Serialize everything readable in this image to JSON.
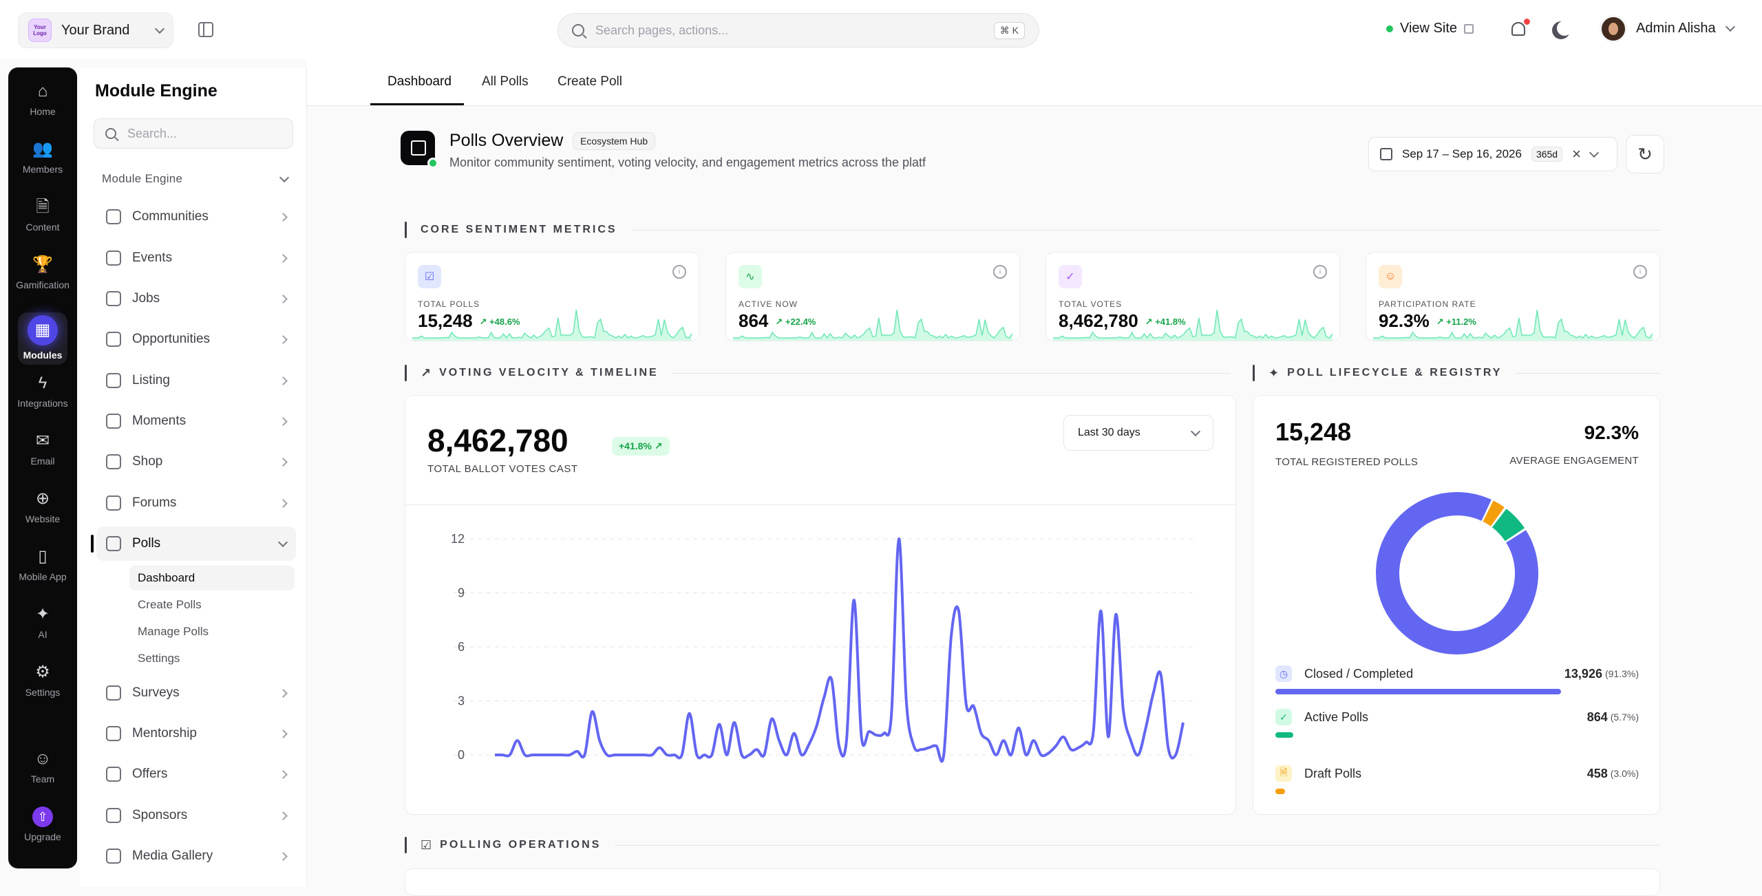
{
  "topbar": {
    "brand_logo": "Your Logo",
    "brand_name": "Your Brand",
    "search_placeholder": "Search pages, actions...",
    "search_shortcut": "⌘ K",
    "view_site": "View Site",
    "user_name": "Admin Alisha"
  },
  "rail": {
    "items": [
      {
        "label": "Home",
        "icon": "home-icon",
        "glyph": "⌂"
      },
      {
        "label": "Members",
        "icon": "members-icon",
        "glyph": "👥"
      },
      {
        "label": "Content",
        "icon": "document-icon",
        "glyph": "🗎"
      },
      {
        "label": "Gamification",
        "icon": "trophy-icon",
        "glyph": "🏆"
      },
      {
        "label": "Modules",
        "icon": "modules-icon",
        "glyph": "▦"
      },
      {
        "label": "Integrations",
        "icon": "bolt-icon",
        "glyph": "ϟ"
      },
      {
        "label": "Email",
        "icon": "mail-icon",
        "glyph": "✉"
      },
      {
        "label": "Website",
        "icon": "globe-icon",
        "glyph": "⊕"
      },
      {
        "label": "Mobile App",
        "icon": "phone-icon",
        "glyph": "▯"
      },
      {
        "label": "AI",
        "icon": "sparkles-icon",
        "glyph": "✦"
      },
      {
        "label": "Settings",
        "icon": "gear-icon",
        "glyph": "⚙"
      },
      {
        "label": "Team",
        "icon": "team-icon",
        "glyph": "☺"
      },
      {
        "label": "Upgrade",
        "icon": "upgrade-icon",
        "glyph": "⇧"
      }
    ]
  },
  "sidebar": {
    "title": "Module Engine",
    "search_placeholder": "Search...",
    "group": "Module Engine",
    "items": [
      {
        "label": "Communities"
      },
      {
        "label": "Events"
      },
      {
        "label": "Jobs"
      },
      {
        "label": "Opportunities"
      },
      {
        "label": "Listing"
      },
      {
        "label": "Moments"
      },
      {
        "label": "Shop"
      },
      {
        "label": "Forums"
      },
      {
        "label": "Polls"
      },
      {
        "label": "Surveys"
      },
      {
        "label": "Mentorship"
      },
      {
        "label": "Offers"
      },
      {
        "label": "Sponsors"
      },
      {
        "label": "Media Gallery"
      }
    ],
    "polls_sub": [
      "Dashboard",
      "Create Polls",
      "Manage Polls",
      "Settings"
    ]
  },
  "tabs": [
    "Dashboard",
    "All Polls",
    "Create Poll"
  ],
  "overview": {
    "title": "Polls Overview",
    "badge": "Ecosystem Hub",
    "subtitle": "Monitor community sentiment, voting velocity, and engagement metrics across the platf",
    "date_range": "Sep 17 – Sep 16, 2026",
    "date_days": "365d"
  },
  "sections": {
    "core": "CORE SENTIMENT METRICS",
    "velocity": "VOTING VELOCITY & TIMELINE",
    "lifecycle": "POLL LIFECYCLE & REGISTRY",
    "operations": "POLLING OPERATIONS"
  },
  "kpis": [
    {
      "label": "TOTAL POLLS",
      "value": "15,248",
      "change": "+48.6%",
      "color": "#6366f1",
      "bg": "#e0e7ff"
    },
    {
      "label": "ACTIVE NOW",
      "value": "864",
      "change": "+22.4%",
      "color": "#16a34a",
      "bg": "#dcfce7"
    },
    {
      "label": "TOTAL VOTES",
      "value": "8,462,780",
      "change": "+41.8%",
      "color": "#a855f7",
      "bg": "#f3e8ff"
    },
    {
      "label": "PARTICIPATION RATE",
      "value": "92.3%",
      "change": "+11.2%",
      "color": "#f97316",
      "bg": "#ffedd5"
    }
  ],
  "velocity": {
    "total": "8,462,780",
    "change": "+41.8%",
    "label": "TOTAL BALLOT VOTES CAST",
    "period": "Last 30 days"
  },
  "chart_data": {
    "type": "line",
    "ylim": [
      0,
      12
    ],
    "yticks": [
      "12",
      "9",
      "6",
      "3",
      "0"
    ],
    "series_color": "#6366f1",
    "values": [
      0,
      0,
      0,
      0.8,
      0,
      0,
      0,
      0,
      0,
      0,
      0,
      0.2,
      0,
      2.4,
      0.8,
      0,
      0,
      0,
      0,
      0,
      0,
      0,
      0.4,
      0,
      0,
      0,
      2.3,
      0,
      0,
      0,
      1.7,
      0,
      1.8,
      0,
      0,
      0.3,
      0,
      2.0,
      0.8,
      0,
      1.2,
      0,
      0.6,
      1.6,
      3.2,
      4.2,
      0.5,
      0.8,
      8.6,
      1.0,
      1.3,
      1.1,
      1.2,
      2.2,
      12.0,
      3.0,
      0.5,
      0.3,
      0.4,
      0.5,
      0,
      6.6,
      8.0,
      2.8,
      2.7,
      1.2,
      0.8,
      0,
      0.8,
      0,
      1.5,
      0,
      0.8,
      0,
      0.1,
      0.5,
      1.0,
      0.3,
      0.4,
      0.7,
      1.3,
      8.0,
      1.0,
      7.8,
      2.5,
      0.8,
      0,
      1.5,
      3.4,
      4.5,
      0.4,
      0,
      1.8
    ]
  },
  "lifecycle": {
    "total": "15,248",
    "total_label": "TOTAL REGISTERED POLLS",
    "engagement": "92.3%",
    "engagement_label": "AVERAGE ENGAGEMENT",
    "slices": [
      {
        "name": "Closed / Completed",
        "value": "13,926",
        "pct": "(91.3%)",
        "fraction": 0.913,
        "color": "#6366f1"
      },
      {
        "name": "Active Polls",
        "value": "864",
        "pct": "(5.7%)",
        "fraction": 0.057,
        "color": "#10b981"
      },
      {
        "name": "Draft Polls",
        "value": "458",
        "pct": "(3.0%)",
        "fraction": 0.03,
        "color": "#f59e0b"
      }
    ]
  }
}
